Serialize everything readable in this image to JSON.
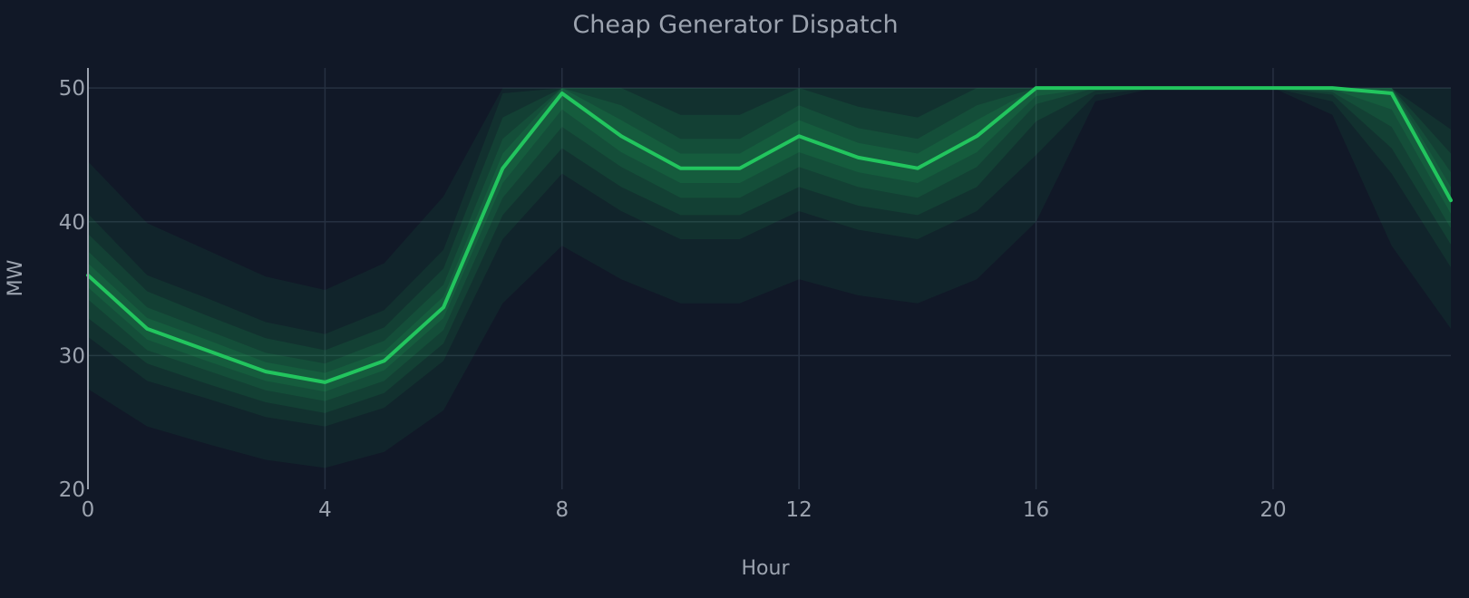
{
  "chart_data": {
    "type": "line",
    "title": "Cheap Generator Dispatch",
    "xlabel": "Hour",
    "ylabel": "MW",
    "xlim": [
      0,
      23
    ],
    "ylim": [
      20,
      51.5
    ],
    "xticks": [
      0,
      4,
      8,
      12,
      16,
      20
    ],
    "yticks": [
      20,
      30,
      40,
      50
    ],
    "grid": true,
    "legend": "none",
    "colors": {
      "background": "#111827",
      "line": "#22c55e",
      "band": "#22c55e",
      "grid": "#263041",
      "text": "#9ca3af"
    },
    "x": [
      0,
      1,
      2,
      3,
      4,
      5,
      6,
      7,
      8,
      9,
      10,
      11,
      12,
      13,
      14,
      15,
      16,
      17,
      18,
      19,
      20,
      21,
      22,
      23
    ],
    "series": [
      {
        "values": [
          36,
          32,
          30.4,
          28.8,
          28,
          29.6,
          33.6,
          44,
          49.6,
          46.4,
          44,
          44,
          46.4,
          44.8,
          44,
          46.4,
          50,
          50,
          50,
          50,
          50,
          50,
          49.6,
          41.6
        ]
      }
    ],
    "bands": [
      {
        "lower": [
          27.5,
          24.7,
          23.4,
          22.2,
          21.6,
          22.8,
          25.9,
          33.9,
          38.2,
          35.7,
          33.9,
          33.9,
          35.7,
          34.5,
          33.9,
          35.7,
          40,
          49,
          50,
          50,
          50,
          48,
          38.2,
          32
        ],
        "upper": [
          44.5,
          39.9,
          37.9,
          35.9,
          34.9,
          36.9,
          41.9,
          50,
          50,
          50,
          50,
          50,
          50,
          50,
          50,
          50,
          50,
          50,
          50,
          50,
          50,
          50,
          50,
          50
        ]
      },
      {
        "lower": [
          31.4,
          28.1,
          26.8,
          25.4,
          24.7,
          26.1,
          29.6,
          38.7,
          43.6,
          40.8,
          38.7,
          38.7,
          40.8,
          39.4,
          38.7,
          40.8,
          45,
          49.5,
          50,
          50,
          50,
          49,
          43.6,
          36.6
        ],
        "upper": [
          40.6,
          36,
          34.3,
          32.5,
          31.6,
          33.4,
          37.9,
          49.6,
          50,
          50,
          50,
          50,
          50,
          50,
          50,
          50,
          50,
          50,
          50,
          50,
          50,
          50,
          50,
          46.9
        ]
      },
      {
        "lower": [
          32.8,
          29.4,
          27.9,
          26.5,
          25.7,
          27.2,
          30.9,
          40.5,
          45.5,
          42.6,
          40.5,
          40.5,
          42.6,
          41.2,
          40.5,
          42.6,
          47.5,
          49.8,
          50,
          50,
          50,
          49.5,
          45.5,
          38.3
        ],
        "upper": [
          39.1,
          34.8,
          33,
          31.3,
          30.4,
          32.1,
          36.5,
          47.8,
          50,
          50,
          48,
          48,
          50,
          48.6,
          47.8,
          50,
          50,
          50,
          50,
          50,
          50,
          50,
          50,
          45.1
        ]
      },
      {
        "lower": [
          34.2,
          30.4,
          28.9,
          27.4,
          26.6,
          28.1,
          31.9,
          41.8,
          47.1,
          44.1,
          41.8,
          41.8,
          44.1,
          42.6,
          41.8,
          44.1,
          48.8,
          50,
          50,
          50,
          50,
          49.7,
          47.1,
          39.5
        ],
        "upper": [
          37.8,
          33.6,
          31.9,
          30.2,
          29.4,
          31.1,
          35.3,
          46.2,
          50,
          48.7,
          46.2,
          46.2,
          48.7,
          47,
          46.2,
          48.7,
          50,
          50,
          50,
          50,
          50,
          50,
          50,
          43.7
        ]
      },
      {
        "lower": [
          35.1,
          31.2,
          29.6,
          28.1,
          27.3,
          28.9,
          32.8,
          42.9,
          48.4,
          45.2,
          42.9,
          42.9,
          45.2,
          43.7,
          42.9,
          45.2,
          49.4,
          50,
          50,
          50,
          50,
          49.9,
          48.4,
          40.6
        ],
        "upper": [
          36.9,
          32.8,
          31.2,
          29.5,
          28.7,
          30.3,
          34.4,
          45.1,
          50,
          47.6,
          45.1,
          45.1,
          47.6,
          45.9,
          45.1,
          47.6,
          50,
          50,
          50,
          50,
          50,
          50,
          50,
          42.6
        ]
      }
    ]
  }
}
